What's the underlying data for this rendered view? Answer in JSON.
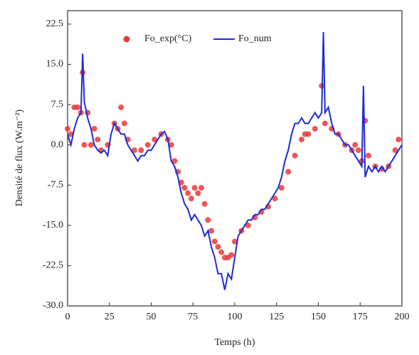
{
  "chart_data": {
    "type": "line",
    "xlabel": "Temps (h)",
    "ylabel": "Densité de flux (W.m⁻²)",
    "xlim": [
      0,
      200
    ],
    "xticks": [
      0,
      25,
      50,
      75,
      100,
      125,
      150,
      175,
      200
    ],
    "ylim": [
      -30,
      25
    ],
    "yticks": [
      {
        "value": -30,
        "label": "-30.0"
      },
      -22.5,
      {
        "value": -15,
        "label": "-15.0"
      },
      -7.5,
      {
        "value": 0,
        "label": "0.0"
      },
      7.5,
      {
        "value": 15,
        "label": "15.0"
      },
      22.5
    ],
    "legend": "top",
    "series": [
      {
        "name": "Fo_exp(°C)",
        "type": "scatter",
        "color": "#e8393a",
        "x": [
          0,
          2,
          4,
          6,
          8,
          9,
          10,
          12,
          14,
          16,
          18,
          20,
          24,
          28,
          30,
          32,
          34,
          36,
          40,
          44,
          48,
          52,
          56,
          60,
          62,
          64,
          66,
          68,
          70,
          72,
          74,
          76,
          78,
          80,
          82,
          84,
          86,
          88,
          90,
          92,
          94,
          96,
          98,
          100,
          104,
          108,
          112,
          116,
          120,
          124,
          128,
          132,
          136,
          140,
          142,
          144,
          148,
          152,
          154,
          158,
          162,
          166,
          170,
          172,
          174,
          176,
          178,
          180,
          184,
          188,
          192,
          196,
          198
        ],
        "values": [
          3,
          2,
          7,
          7,
          6,
          13.5,
          0,
          6,
          0,
          3,
          1,
          -1,
          0,
          4,
          3,
          7,
          4,
          1,
          -1,
          -1,
          0,
          1,
          2,
          1,
          0,
          -3,
          -5,
          -7,
          -8,
          -9,
          -10,
          -8,
          -9,
          -8,
          -11,
          -14,
          -16,
          -18,
          -19,
          -20,
          -21,
          -21,
          -20.5,
          -18,
          -16,
          -15,
          -13.5,
          -12.5,
          -11.5,
          -10,
          -8,
          -5,
          -2,
          1,
          2,
          2,
          3,
          11,
          4,
          3,
          2,
          0,
          -1,
          0,
          -1,
          -3,
          4.5,
          -2,
          -4,
          -4.5,
          -4,
          -1,
          1
        ]
      },
      {
        "name": "Fo_num",
        "type": "line",
        "color": "#1f2bd6",
        "x": [
          0,
          2,
          4,
          6,
          8,
          9,
          10,
          12,
          14,
          16,
          18,
          20,
          22,
          24,
          26,
          28,
          30,
          32,
          34,
          36,
          38,
          40,
          42,
          44,
          46,
          48,
          50,
          52,
          54,
          56,
          58,
          60,
          62,
          64,
          66,
          68,
          70,
          72,
          74,
          76,
          78,
          80,
          82,
          84,
          86,
          88,
          90,
          92,
          94,
          96,
          98,
          100,
          102,
          104,
          106,
          108,
          110,
          112,
          114,
          116,
          118,
          120,
          122,
          124,
          126,
          128,
          130,
          132,
          134,
          136,
          138,
          140,
          142,
          144,
          146,
          148,
          150,
          152,
          153,
          154,
          156,
          158,
          160,
          162,
          164,
          166,
          168,
          170,
          172,
          174,
          176,
          177,
          178,
          180,
          182,
          184,
          186,
          188,
          190,
          192,
          194,
          196,
          198,
          200
        ],
        "values": [
          2,
          0,
          3,
          5,
          6,
          17,
          8,
          5,
          3,
          0,
          -1,
          -1.5,
          -1,
          -2,
          2,
          4,
          3,
          2,
          2,
          0,
          -1,
          -2,
          -3,
          -2,
          -2,
          -1,
          -1,
          0,
          1,
          2,
          2.5,
          1,
          -3,
          -4,
          -6,
          -9,
          -11,
          -12,
          -14,
          -13,
          -14,
          -15,
          -17,
          -16,
          -19,
          -21,
          -24,
          -24,
          -27,
          -24,
          -25,
          -21,
          -17,
          -16,
          -15,
          -14,
          -14,
          -13,
          -13,
          -12,
          -12,
          -11,
          -10,
          -9,
          -8,
          -6,
          -3,
          -1,
          2,
          4,
          4,
          5,
          4,
          4,
          5,
          6,
          5,
          6,
          21,
          6,
          7,
          4,
          2,
          2,
          1,
          0,
          0,
          -1,
          -2,
          -3,
          -4,
          11,
          -6,
          -4,
          -5,
          -4,
          -5,
          -4,
          -5,
          -4,
          -3,
          -2,
          -1,
          0
        ]
      }
    ]
  }
}
